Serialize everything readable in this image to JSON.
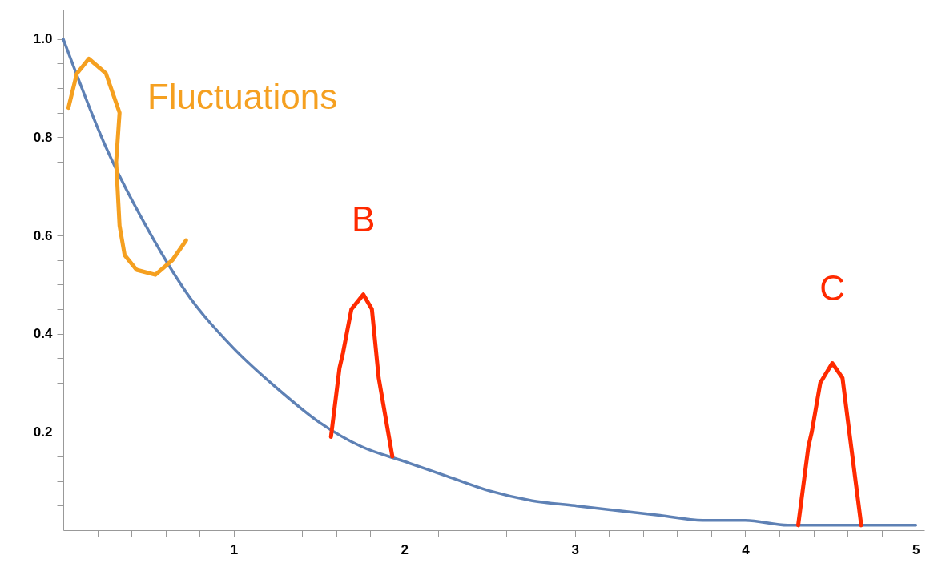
{
  "chart_data": {
    "type": "line",
    "xlim": [
      0,
      5.05
    ],
    "ylim": [
      0,
      1.06
    ],
    "xticks": [
      {
        "value": 0.2,
        "label": null
      },
      {
        "value": 0.4,
        "label": null
      },
      {
        "value": 0.6,
        "label": null
      },
      {
        "value": 0.8,
        "label": null
      },
      1,
      {
        "value": 1.2,
        "label": null
      },
      {
        "value": 1.4,
        "label": null
      },
      {
        "value": 1.6,
        "label": null
      },
      {
        "value": 1.8,
        "label": null
      },
      2,
      {
        "value": 2.2,
        "label": null
      },
      {
        "value": 2.4,
        "label": null
      },
      {
        "value": 2.6,
        "label": null
      },
      {
        "value": 2.8,
        "label": null
      },
      3,
      {
        "value": 3.2,
        "label": null
      },
      {
        "value": 3.4,
        "label": null
      },
      {
        "value": 3.6,
        "label": null
      },
      {
        "value": 3.8,
        "label": null
      },
      4,
      {
        "value": 4.2,
        "label": null
      },
      {
        "value": 4.4,
        "label": null
      },
      {
        "value": 4.6,
        "label": null
      },
      {
        "value": 4.8,
        "label": null
      },
      5
    ],
    "yticks": [
      {
        "value": 0.05,
        "label": null
      },
      {
        "value": 0.1,
        "label": null
      },
      {
        "value": 0.15,
        "label": null
      },
      0.2,
      {
        "value": 0.25,
        "label": null
      },
      {
        "value": 0.3,
        "label": null
      },
      {
        "value": 0.35,
        "label": null
      },
      0.4,
      {
        "value": 0.45,
        "label": null
      },
      {
        "value": 0.5,
        "label": null
      },
      {
        "value": 0.55,
        "label": null
      },
      0.6,
      {
        "value": 0.65,
        "label": null
      },
      {
        "value": 0.7,
        "label": null
      },
      {
        "value": 0.75,
        "label": null
      },
      0.8,
      {
        "value": 0.85,
        "label": null
      },
      {
        "value": 0.9,
        "label": null
      },
      {
        "value": 0.95,
        "label": null
      },
      {
        "value": 1,
        "label": "1.0"
      }
    ],
    "marker": "none",
    "line_style": "solid",
    "series": [
      {
        "color": "#5e81b5",
        "x": [
          0,
          0.25,
          0.5,
          0.75,
          1,
          1.25,
          1.5,
          1.75,
          2,
          2.25,
          2.5,
          2.75,
          3,
          3.25,
          3.5,
          3.75,
          4,
          4.25,
          4.5,
          4.75,
          5
        ],
        "values": [
          1,
          0.78,
          0.61,
          0.47,
          0.37,
          0.29,
          0.22,
          0.17,
          0.14,
          0.11,
          0.08,
          0.06,
          0.05,
          0.04,
          0.03,
          0.02,
          0.02,
          0.01,
          0.01,
          0.01,
          0.01
        ]
      },
      {
        "color": "#f5a020",
        "x": [
          0.03,
          0.08,
          0.15,
          0.25,
          0.33,
          0.31,
          0.33,
          0.36,
          0.43,
          0.54,
          0.64,
          0.72
        ],
        "values": [
          0.86,
          0.93,
          0.96,
          0.93,
          0.85,
          0.75,
          0.62,
          0.56,
          0.53,
          0.52,
          0.55,
          0.59
        ]
      },
      {
        "color": "#ff2a00",
        "x": [
          1.57,
          1.62,
          1.64,
          1.69,
          1.76,
          1.81,
          1.85,
          1.93
        ],
        "values": [
          0.19,
          0.33,
          0.36,
          0.45,
          0.48,
          0.45,
          0.31,
          0.15
        ]
      },
      {
        "color": "#ff2a00",
        "x": [
          4.31,
          4.37,
          4.39,
          4.44,
          4.51,
          4.57,
          4.61,
          4.68
        ],
        "values": [
          0.01,
          0.17,
          0.2,
          0.3,
          0.34,
          0.31,
          0.2,
          0.01
        ]
      }
    ],
    "annotations": [
      "Fluctuations",
      "B",
      "C"
    ]
  }
}
